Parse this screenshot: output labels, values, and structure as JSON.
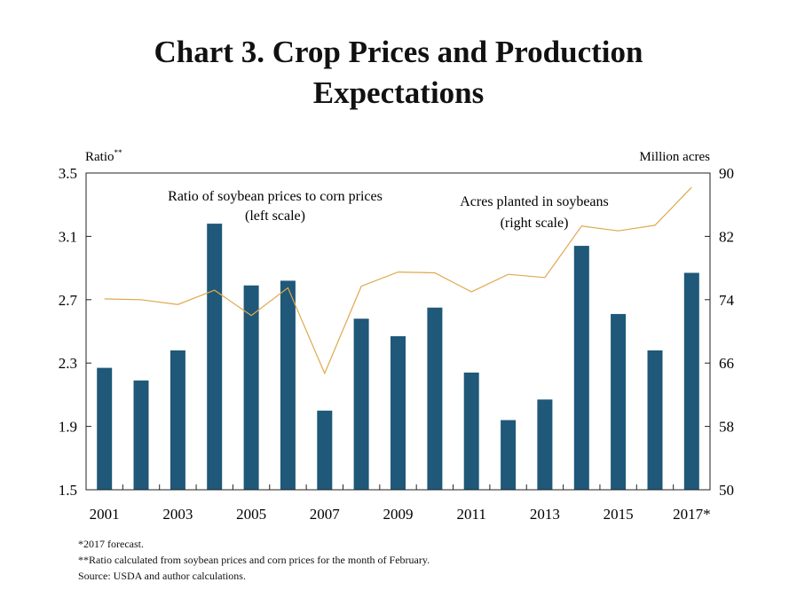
{
  "title_line1": "Chart 3. Crop Prices and Production",
  "title_line2": "Expectations",
  "chart_data": {
    "type": "bar",
    "x": [
      2001,
      2002,
      2003,
      2004,
      2005,
      2006,
      2007,
      2008,
      2009,
      2010,
      2011,
      2012,
      2013,
      2014,
      2015,
      2016,
      2017
    ],
    "xtick_labels": [
      "2001",
      "2003",
      "2005",
      "2007",
      "2009",
      "2011",
      "2013",
      "2015",
      "2017*"
    ],
    "left_axis": {
      "label": "Ratio",
      "label_sup": "**",
      "ylim": [
        1.5,
        3.5
      ],
      "ticks": [
        "3.5",
        "3.1",
        "2.7",
        "2.3",
        "1.9",
        "1.5"
      ]
    },
    "right_axis": {
      "label": "Million acres",
      "ylim": [
        50,
        90
      ],
      "ticks": [
        "90",
        "82",
        "74",
        "66",
        "58",
        "50"
      ]
    },
    "series": [
      {
        "name": "Ratio of soybean prices to corn prices (left scale)",
        "label_line1": "Ratio of soybean prices to corn prices",
        "label_line2": "(left scale)",
        "type": "bar",
        "axis": "left",
        "color": "#1f5878",
        "values": [
          2.27,
          2.19,
          2.38,
          3.18,
          2.79,
          2.82,
          2.0,
          2.58,
          2.47,
          2.65,
          2.24,
          1.94,
          2.07,
          3.04,
          2.61,
          2.38,
          2.87
        ]
      },
      {
        "name": "Acres planted in soybeans (right scale)",
        "label_line1": "Acres planted in soybeans",
        "label_line2": "(right scale)",
        "type": "line",
        "axis": "right",
        "color": "#e0a84e",
        "values": [
          74.1,
          74.0,
          73.4,
          75.2,
          72.0,
          75.5,
          64.7,
          75.7,
          77.5,
          77.4,
          75.0,
          77.2,
          76.8,
          83.3,
          82.7,
          83.4,
          88.2
        ]
      }
    ],
    "grid": false
  },
  "footnotes": {
    "line1": "*2017 forecast.",
    "line2": "**Ratio calculated from soybean prices and corn prices for the month of February.",
    "line3": "Source: USDA and author calculations."
  }
}
